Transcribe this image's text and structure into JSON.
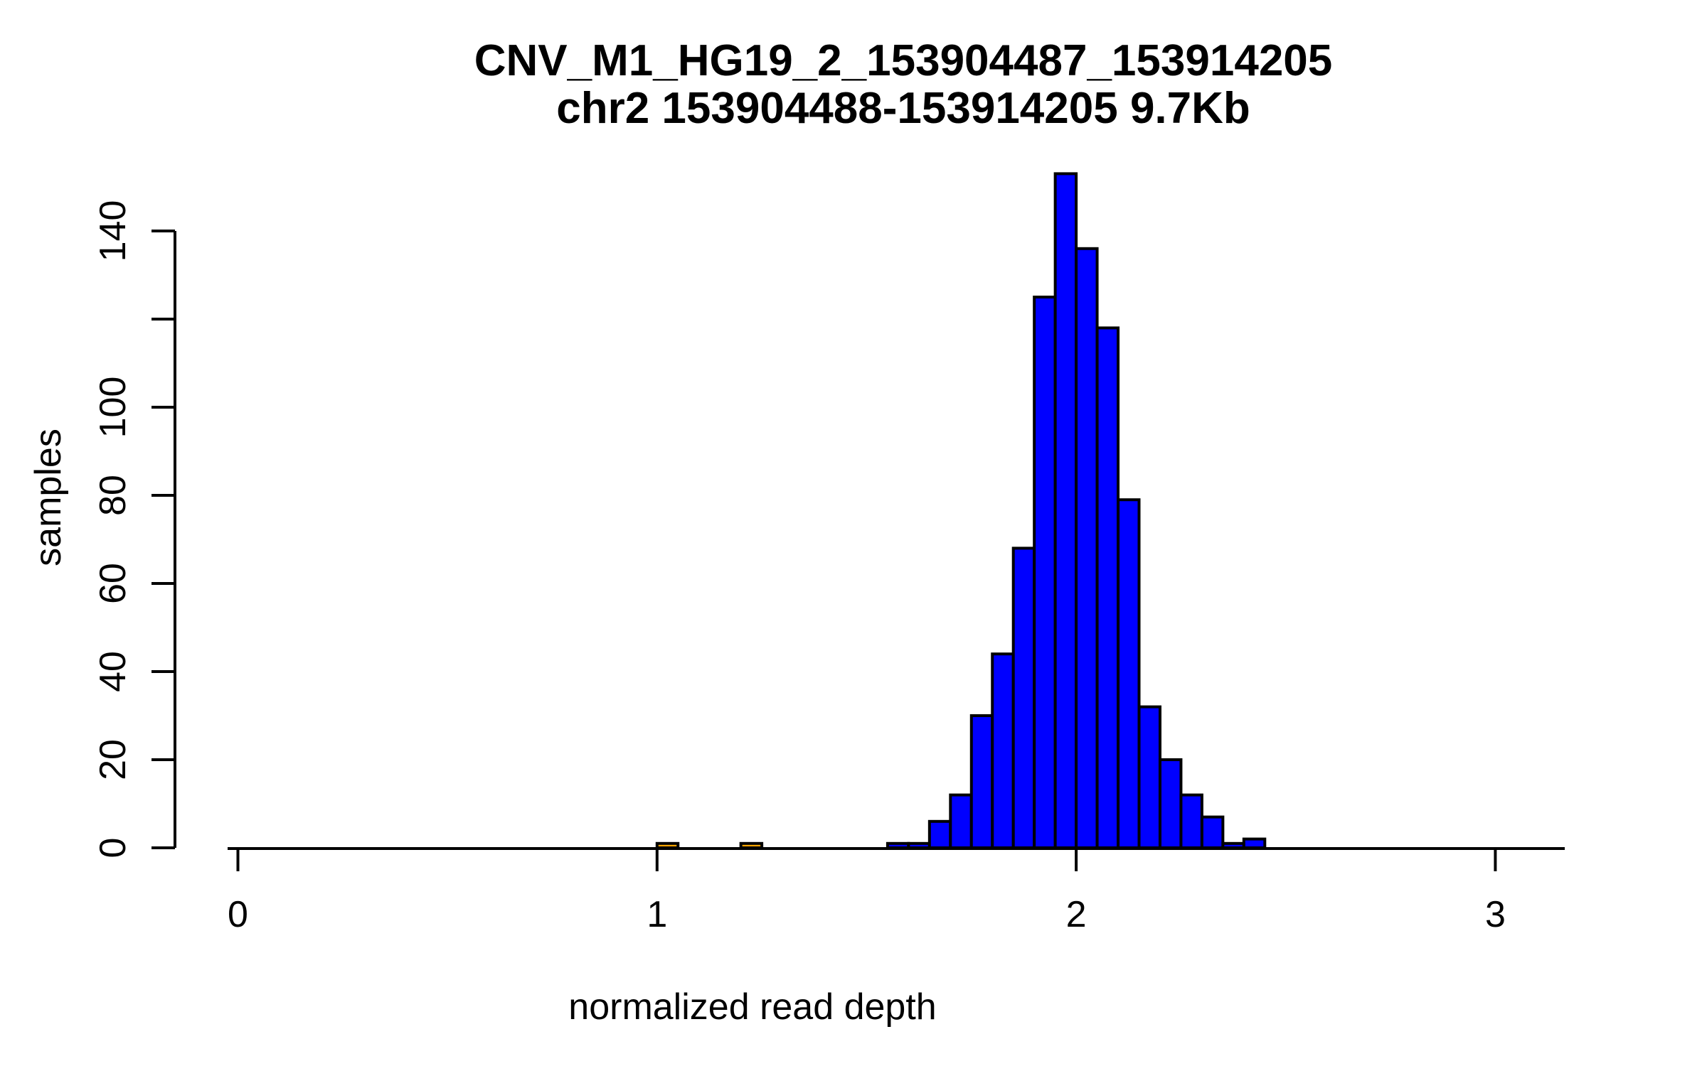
{
  "title": {
    "line1": "CNV_M1_HG19_2_153904487_153914205",
    "line2": "chr2 153904488-153914205 9.7Kb"
  },
  "axes": {
    "x_label": "normalized read depth",
    "y_label": "samples",
    "x_ticks": [
      {
        "value": 0,
        "label": "0"
      },
      {
        "value": 1,
        "label": "1"
      },
      {
        "value": 2,
        "label": "2"
      },
      {
        "value": 3,
        "label": "3"
      }
    ],
    "y_ticks": [
      {
        "value": 0,
        "label": "0"
      },
      {
        "value": 20,
        "label": "20"
      },
      {
        "value": 40,
        "label": "40"
      },
      {
        "value": 60,
        "label": "60"
      },
      {
        "value": 80,
        "label": "80"
      },
      {
        "value": 100,
        "label": "100"
      },
      {
        "value": 120,
        "label": ""
      },
      {
        "value": 140,
        "label": "140"
      }
    ]
  },
  "colors": {
    "bar_main": "#0000FF",
    "bar_outlier": "#FFA500",
    "ink": "#000000",
    "background": "#FFFFFF"
  },
  "chart_data": {
    "type": "bar",
    "subtype": "histogram",
    "title": "CNV_M1_HG19_2_153904487_153914205",
    "subtitle": "chr2 153904488-153914205 9.7Kb",
    "xlabel": "normalized read depth",
    "ylabel": "samples",
    "xlim": [
      0,
      3.17
    ],
    "ylim": [
      0,
      155
    ],
    "grid": false,
    "legend": false,
    "bin_width": 0.05,
    "bars": [
      {
        "from": 1.0,
        "to": 1.05,
        "samples": 1,
        "color": "#FFA500"
      },
      {
        "from": 1.2,
        "to": 1.25,
        "samples": 1,
        "color": "#FFA500"
      },
      {
        "from": 1.55,
        "to": 1.6,
        "samples": 1,
        "color": "#0000FF"
      },
      {
        "from": 1.6,
        "to": 1.65,
        "samples": 1,
        "color": "#0000FF"
      },
      {
        "from": 1.65,
        "to": 1.7,
        "samples": 6,
        "color": "#0000FF"
      },
      {
        "from": 1.7,
        "to": 1.75,
        "samples": 12,
        "color": "#0000FF"
      },
      {
        "from": 1.75,
        "to": 1.8,
        "samples": 30,
        "color": "#0000FF"
      },
      {
        "from": 1.8,
        "to": 1.85,
        "samples": 44,
        "color": "#0000FF"
      },
      {
        "from": 1.85,
        "to": 1.9,
        "samples": 68,
        "color": "#0000FF"
      },
      {
        "from": 1.9,
        "to": 1.95,
        "samples": 125,
        "color": "#0000FF"
      },
      {
        "from": 1.95,
        "to": 2.0,
        "samples": 153,
        "color": "#0000FF"
      },
      {
        "from": 2.0,
        "to": 2.05,
        "samples": 136,
        "color": "#0000FF"
      },
      {
        "from": 2.05,
        "to": 2.1,
        "samples": 118,
        "color": "#0000FF"
      },
      {
        "from": 2.1,
        "to": 2.15,
        "samples": 79,
        "color": "#0000FF"
      },
      {
        "from": 2.15,
        "to": 2.2,
        "samples": 32,
        "color": "#0000FF"
      },
      {
        "from": 2.2,
        "to": 2.25,
        "samples": 20,
        "color": "#0000FF"
      },
      {
        "from": 2.25,
        "to": 2.3,
        "samples": 12,
        "color": "#0000FF"
      },
      {
        "from": 2.3,
        "to": 2.35,
        "samples": 7,
        "color": "#0000FF"
      },
      {
        "from": 2.35,
        "to": 2.4,
        "samples": 1,
        "color": "#0000FF"
      },
      {
        "from": 2.4,
        "to": 2.45,
        "samples": 2,
        "color": "#0000FF"
      }
    ]
  }
}
